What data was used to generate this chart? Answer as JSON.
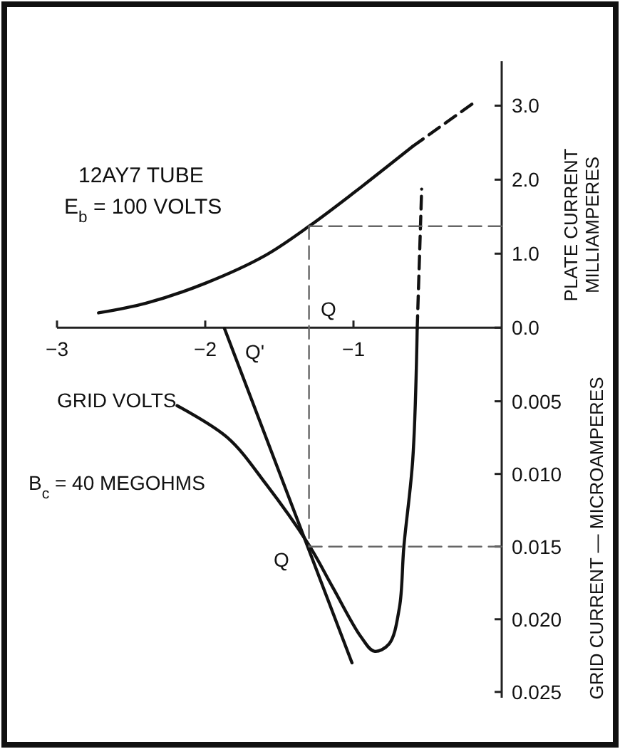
{
  "chart_data": {
    "type": "line",
    "xlabel": "GRID VOLTS",
    "y2label": "PLATE CURRENT\nMILLIAMPERES",
    "y3label": "GRID CURRENT — MICROAMPERES",
    "xlim": [
      -3,
      0
    ],
    "xticks": [
      {
        "value": -3,
        "label": "−3"
      },
      {
        "value": -2,
        "label": "−2"
      },
      {
        "value": -1,
        "label": "−1"
      }
    ],
    "y2lim": [
      -5,
      3.6
    ],
    "y2ticks": [
      {
        "value": 0,
        "label": "0.0"
      },
      {
        "value": 1,
        "label": "1.0"
      },
      {
        "value": 2,
        "label": "2.0"
      },
      {
        "value": 3,
        "label": "3.0"
      }
    ],
    "y3lim": [
      0.0254,
      -0.0184
    ],
    "y3ticks": [
      {
        "value": 0.005,
        "label": "0.005"
      },
      {
        "value": 0.01,
        "label": "0.010"
      },
      {
        "value": 0.015,
        "label": "0.015"
      },
      {
        "value": 0.02,
        "label": "0.020"
      },
      {
        "value": 0.025,
        "label": "0.025"
      }
    ],
    "series": [
      {
        "color": "#111111",
        "axis": "y2",
        "x": [
          -2.72,
          -2.4,
          -2.0,
          -1.6,
          -1.3,
          -1.0,
          -0.6
        ],
        "values": [
          0.2,
          0.33,
          0.6,
          0.97,
          1.37,
          1.82,
          2.45
        ]
      },
      {
        "color": "#111111",
        "axis": "y2",
        "line_style": "dashed",
        "x": [
          -0.6,
          -0.18
        ],
        "values": [
          2.45,
          3.05
        ]
      },
      {
        "color": "#111111",
        "axis": "y3",
        "x": [
          -2.19,
          -1.85,
          -1.59,
          -1.3,
          -1.14,
          -0.95,
          -0.86,
          -0.76,
          -0.69,
          -0.66,
          -0.6,
          -0.57
        ],
        "values": [
          0.0053,
          0.0075,
          0.0107,
          0.0149,
          0.0178,
          0.0212,
          0.0222,
          0.0217,
          0.0192,
          0.015,
          0.009,
          0.0
        ]
      },
      {
        "color": "#111111",
        "axis": "y3",
        "line_style": "dashed",
        "x": [
          -0.57,
          -0.54
        ],
        "values": [
          0.0,
          -0.0096
        ]
      },
      {
        "color": "#111111",
        "axis": "y3",
        "x": [
          -1.87,
          -1.01
        ],
        "values": [
          0.0,
          0.023
        ]
      },
      {
        "color": "#666666",
        "axis": "y2",
        "line_style": "dashed",
        "x": [
          -1.3,
          0
        ],
        "values": [
          1.37,
          1.37
        ]
      },
      {
        "color": "#666666",
        "axis": "y2",
        "line_style": "dashed",
        "x": [
          -1.3,
          -1.3
        ],
        "values": [
          1.37,
          -2.94
        ]
      },
      {
        "color": "#666666",
        "axis": "y3",
        "line_style": "dashed",
        "x": [
          -1.3,
          0
        ],
        "values": [
          0.015,
          0.015
        ]
      }
    ],
    "annotations": [
      "12AY7 TUBE",
      "E$_{b}$ = 100 VOLTS",
      "B$_{c}$ = 40 MEGOHMS",
      "Q",
      "Q'",
      "Q"
    ]
  }
}
